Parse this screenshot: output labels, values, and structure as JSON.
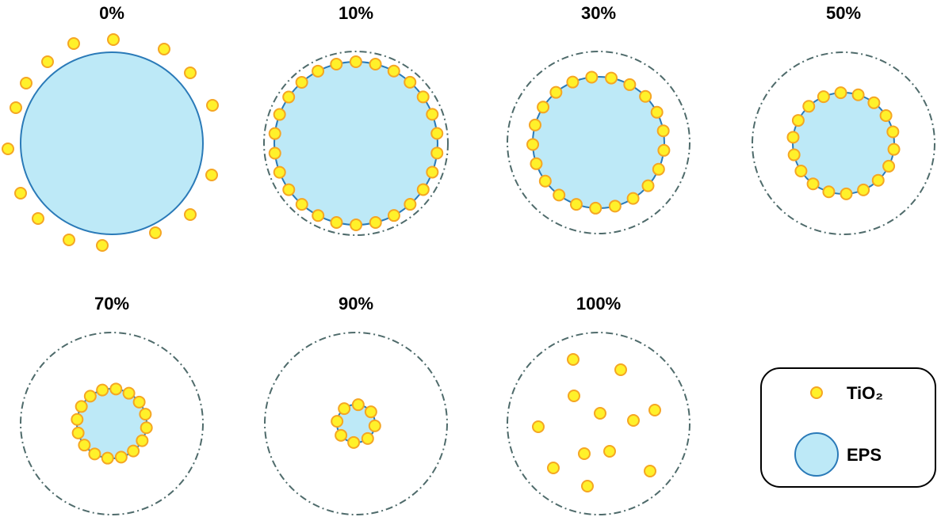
{
  "panels": [
    {
      "label": "0%"
    },
    {
      "label": "10%"
    },
    {
      "label": "30%"
    },
    {
      "label": "50%"
    },
    {
      "label": "70%"
    },
    {
      "label": "90%"
    },
    {
      "label": "100%"
    }
  ],
  "legend": {
    "items": [
      {
        "label": "TiO₂"
      },
      {
        "label": "EPS"
      }
    ]
  }
}
